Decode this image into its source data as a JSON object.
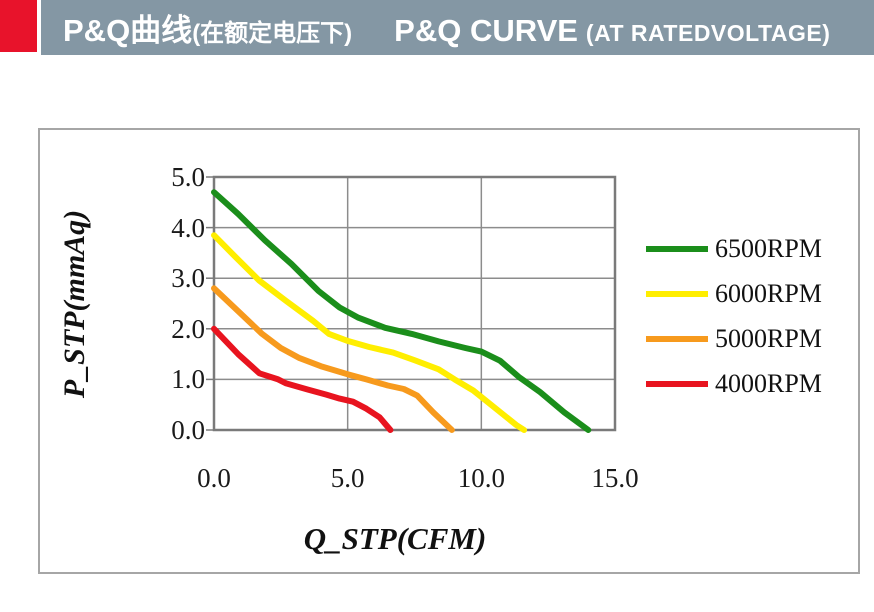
{
  "header": {
    "title_zh": "P&Q曲线",
    "title_zh_paren": "(在额定电压下)",
    "title_en": "P&Q CURVE",
    "title_en_paren": "(AT RATEDVOLTAGE)"
  },
  "colors": {
    "accent_red": "#e8132b",
    "bar_gray": "#8497a4",
    "chart_border": "#a6a6a6",
    "plot_border": "#7a7a7a",
    "gridline": "#8c8c8c",
    "text": "#1a1a1a"
  },
  "chart_data": {
    "type": "line",
    "title": "P&Q CURVE (AT RATED VOLTAGE)",
    "xlabel": "Q_STP(CFM)",
    "ylabel": "P_STP(mmAq)",
    "xlim": [
      0,
      15
    ],
    "ylim": [
      0,
      5
    ],
    "x_ticks": [
      {
        "label": "0.0",
        "value": 0
      },
      {
        "label": "5.0",
        "value": 5
      },
      {
        "label": "10.0",
        "value": 10
      },
      {
        "label": "15.0",
        "value": 15
      }
    ],
    "y_ticks": [
      {
        "label": "5.0",
        "value": 5
      },
      {
        "label": "4.0",
        "value": 4
      },
      {
        "label": "3.0",
        "value": 3
      },
      {
        "label": "2.0",
        "value": 2
      },
      {
        "label": "1.0",
        "value": 1
      },
      {
        "label": "0.0",
        "value": 0
      }
    ],
    "grid": true,
    "legend_position": "right",
    "series": [
      {
        "name": "6500RPM",
        "color": "#1b8e1b",
        "points": [
          [
            0,
            4.7
          ],
          [
            0.9,
            4.27
          ],
          [
            1.9,
            3.75
          ],
          [
            2.9,
            3.28
          ],
          [
            3.9,
            2.75
          ],
          [
            4.7,
            2.42
          ],
          [
            5.4,
            2.22
          ],
          [
            6.4,
            2.02
          ],
          [
            7.4,
            1.9
          ],
          [
            8.4,
            1.75
          ],
          [
            9.4,
            1.62
          ],
          [
            10,
            1.55
          ],
          [
            10.7,
            1.37
          ],
          [
            11.4,
            1.05
          ],
          [
            12.2,
            0.75
          ],
          [
            13.1,
            0.35
          ],
          [
            14,
            0
          ]
        ]
      },
      {
        "name": "6000RPM",
        "color": "#ffee00",
        "points": [
          [
            0,
            3.85
          ],
          [
            0.8,
            3.42
          ],
          [
            1.7,
            2.95
          ],
          [
            2.7,
            2.55
          ],
          [
            3.7,
            2.16
          ],
          [
            4.3,
            1.9
          ],
          [
            5,
            1.76
          ],
          [
            5.8,
            1.64
          ],
          [
            6.7,
            1.53
          ],
          [
            7.5,
            1.38
          ],
          [
            8.4,
            1.2
          ],
          [
            9,
            1.0
          ],
          [
            9.7,
            0.78
          ],
          [
            10.5,
            0.44
          ],
          [
            11.3,
            0.1
          ],
          [
            11.6,
            0
          ]
        ]
      },
      {
        "name": "5000RPM",
        "color": "#f79a1d",
        "points": [
          [
            0,
            2.8
          ],
          [
            1,
            2.3
          ],
          [
            1.8,
            1.9
          ],
          [
            2.5,
            1.62
          ],
          [
            3.2,
            1.42
          ],
          [
            4,
            1.26
          ],
          [
            5,
            1.1
          ],
          [
            5.7,
            1.0
          ],
          [
            6.5,
            0.88
          ],
          [
            7.1,
            0.81
          ],
          [
            7.6,
            0.68
          ],
          [
            8.2,
            0.35
          ],
          [
            8.9,
            0
          ]
        ]
      },
      {
        "name": "4000RPM",
        "color": "#e8141f",
        "points": [
          [
            0,
            2.0
          ],
          [
            0.9,
            1.5
          ],
          [
            1.7,
            1.12
          ],
          [
            2.4,
            1.0
          ],
          [
            2.7,
            0.92
          ],
          [
            3.5,
            0.8
          ],
          [
            4.2,
            0.7
          ],
          [
            4.7,
            0.62
          ],
          [
            5.2,
            0.56
          ],
          [
            5.7,
            0.42
          ],
          [
            6.2,
            0.25
          ],
          [
            6.6,
            0
          ]
        ]
      }
    ]
  }
}
